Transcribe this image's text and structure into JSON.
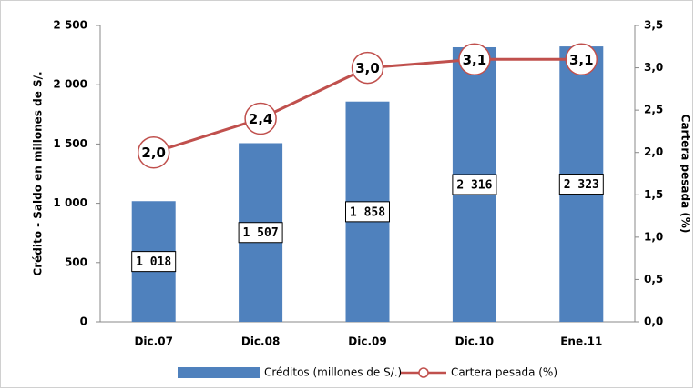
{
  "chart_data": {
    "type": "bar",
    "categories": [
      "Dic.07",
      "Dic.08",
      "Dic.09",
      "Dic.10",
      "Ene.11"
    ],
    "series": [
      {
        "name": "Créditos (millones de S/.)",
        "type": "bar",
        "color": "#4f81bd",
        "values": [
          1018,
          1507,
          1858,
          2316,
          2323
        ],
        "value_labels": [
          "1 018",
          "1 507",
          "1 858",
          "2 316",
          "2 323"
        ]
      },
      {
        "name": "Cartera pesada (%)",
        "type": "line",
        "color": "#c0504d",
        "axis": "y2",
        "values": [
          2.0,
          2.4,
          3.0,
          3.1,
          3.1
        ],
        "value_labels": [
          "2,0",
          "2,4",
          "3,0",
          "3,1",
          "3,1"
        ]
      }
    ],
    "ylabel": "Crédito - Saldo en millones de S/.",
    "y2label": "Cartera pesada (%)",
    "ylim": [
      0,
      2500
    ],
    "yticks": [
      0,
      500,
      {
        "value": 1000,
        "label": "1 000"
      },
      {
        "value": 1500,
        "label": "1 500"
      },
      {
        "value": 2000,
        "label": "2 000"
      },
      {
        "value": 2500,
        "label": "2 500"
      }
    ],
    "y2lim": [
      0,
      3.5
    ],
    "y2ticks": [
      {
        "value": 0,
        "label": "0,0"
      },
      {
        "value": 0.5,
        "label": "0,5"
      },
      {
        "value": 1,
        "label": "1,0"
      },
      {
        "value": 1.5,
        "label": "1,5"
      },
      {
        "value": 2,
        "label": "2,0"
      },
      {
        "value": 2.5,
        "label": "2,5"
      },
      {
        "value": 3,
        "label": "3,0"
      },
      {
        "value": 3.5,
        "label": "3,5"
      }
    ],
    "legend": "bottom"
  }
}
